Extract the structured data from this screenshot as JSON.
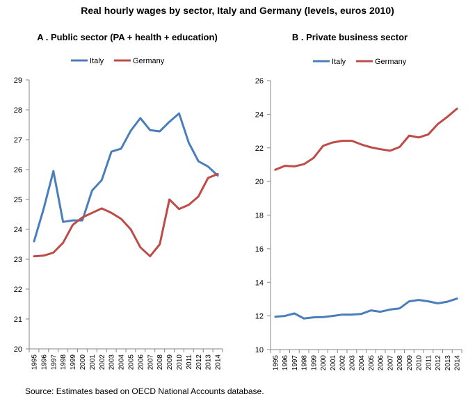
{
  "title": "Real hourly wages by sector, Italy and Germany (levels, euros 2010)",
  "source": "Source: Estimates based on OECD National Accounts database.",
  "colors": {
    "Italy": "#4a7ebb",
    "Germany": "#be4b48",
    "axis": "#868686"
  },
  "chart_data": [
    {
      "type": "line",
      "title": "A . Public sector (PA + health + education)",
      "xlabel": "",
      "ylabel": "",
      "ylim": [
        20,
        29
      ],
      "yticks": [
        "20",
        "21",
        "22",
        "23",
        "24",
        "25",
        "26",
        "27",
        "28",
        "29"
      ],
      "categories": [
        "1995",
        "1996",
        "1997",
        "1998",
        "1999",
        "2000",
        "2001",
        "2002",
        "2003",
        "2004",
        "2005",
        "2006",
        "2007",
        "2008",
        "2009",
        "2010",
        "2011",
        "2012",
        "2013",
        "2014"
      ],
      "legend": [
        "Italy",
        "Germany"
      ],
      "series": [
        {
          "name": "Italy",
          "values": [
            23.6,
            24.7,
            25.95,
            24.25,
            24.3,
            24.3,
            25.3,
            25.65,
            26.6,
            26.7,
            27.3,
            27.72,
            27.32,
            27.28,
            27.6,
            27.88,
            26.9,
            26.28,
            26.1,
            25.8
          ]
        },
        {
          "name": "Germany",
          "values": [
            23.1,
            23.12,
            23.22,
            23.55,
            24.15,
            24.4,
            24.55,
            24.7,
            24.55,
            24.35,
            24.0,
            23.4,
            23.1,
            23.5,
            25.0,
            24.68,
            24.82,
            25.1,
            25.72,
            25.85
          ]
        }
      ]
    },
    {
      "type": "line",
      "title": "B . Private business sector",
      "xlabel": "",
      "ylabel": "",
      "ylim": [
        10,
        26
      ],
      "yticks": [
        "10",
        "12",
        "14",
        "16",
        "18",
        "20",
        "22",
        "24",
        "26"
      ],
      "categories": [
        "1995",
        "1996",
        "1997",
        "1998",
        "1999",
        "2000",
        "2001",
        "2002",
        "2003",
        "2004",
        "2005",
        "2006",
        "2007",
        "2008",
        "2009",
        "2010",
        "2011",
        "2012",
        "2013",
        "2014"
      ],
      "legend": [
        "Italy",
        "Germany"
      ],
      "series": [
        {
          "name": "Italy",
          "values": [
            11.95,
            12.0,
            12.15,
            11.85,
            11.92,
            11.93,
            12.0,
            12.08,
            12.08,
            12.12,
            12.33,
            12.25,
            12.38,
            12.45,
            12.87,
            12.95,
            12.87,
            12.75,
            12.85,
            13.03
          ]
        },
        {
          "name": "Germany",
          "values": [
            20.7,
            20.93,
            20.9,
            21.03,
            21.4,
            22.12,
            22.32,
            22.42,
            22.42,
            22.2,
            22.03,
            21.92,
            21.83,
            22.05,
            22.73,
            22.62,
            22.8,
            23.42,
            23.85,
            24.33
          ]
        }
      ]
    }
  ]
}
